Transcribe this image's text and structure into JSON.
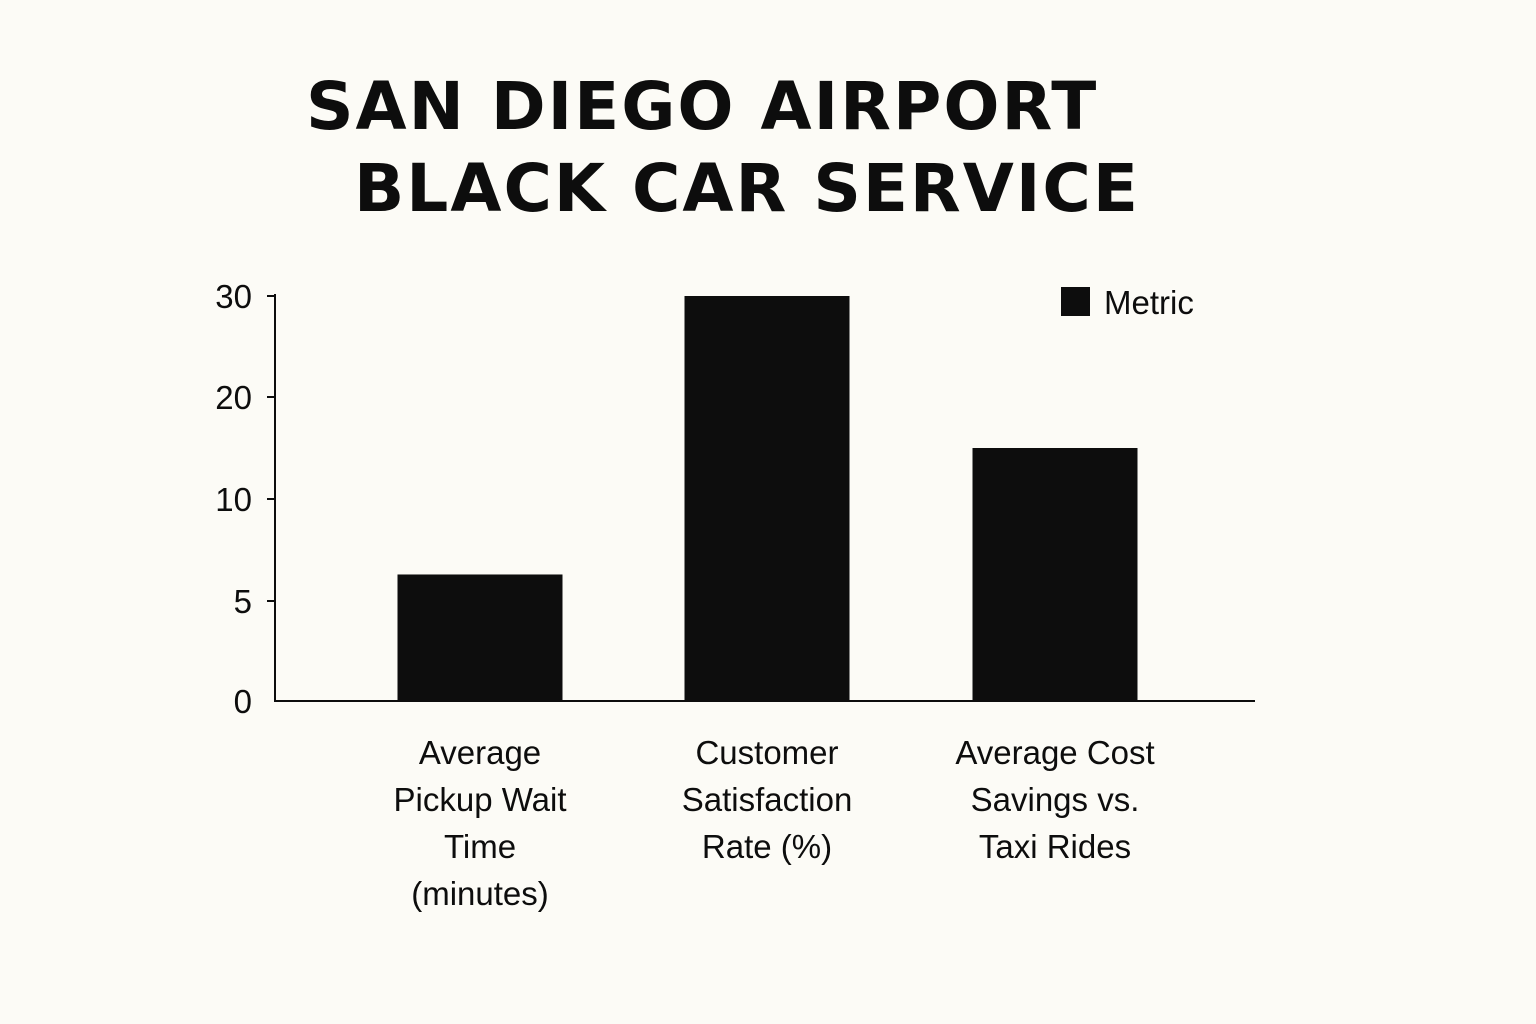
{
  "chart_data": {
    "type": "bar",
    "title_lines": [
      "SAN DIEGO AIRPORT",
      "BLACK CAR SERVICE"
    ],
    "categories": [
      "Average\nPickup Wait\nTime\n(minutes)",
      "Customer\nSatisfaction\nRate (%)",
      "Average Cost\nSavings vs.\nTaxi Rides"
    ],
    "series": [
      {
        "name": "Metric",
        "values": [
          6.3,
          30,
          15
        ]
      }
    ],
    "y_ticks": [
      {
        "label": "0",
        "value": 0
      },
      {
        "label": "5",
        "value": 5
      },
      {
        "label": "10",
        "value": 10
      },
      {
        "label": "20",
        "value": 20
      },
      {
        "label": "30",
        "value": 30
      }
    ],
    "ylim": [
      0,
      30
    ],
    "xlabel": "",
    "ylabel": "",
    "grid": false,
    "legend_position": "top-right",
    "colors": {
      "bar": "#0d0d0d",
      "axis": "#0d0d0d",
      "background": "#fcfbf6"
    }
  }
}
